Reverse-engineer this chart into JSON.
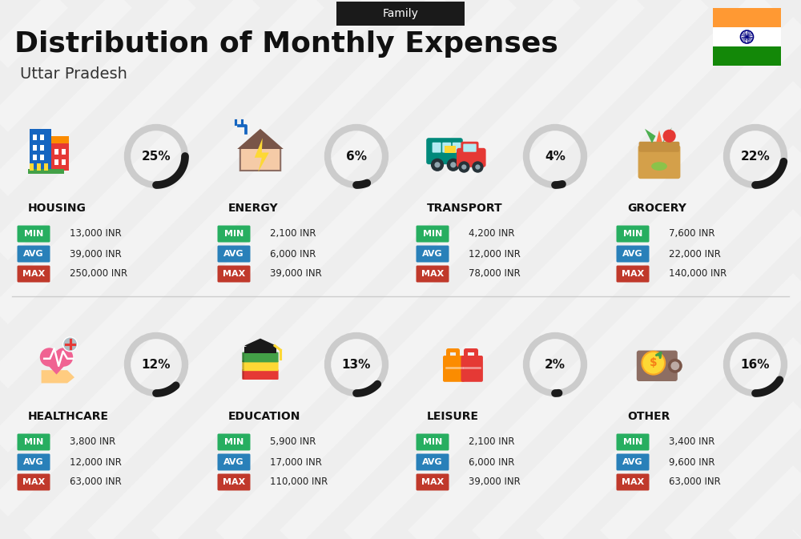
{
  "title": "Distribution of Monthly Expenses",
  "subtitle": "Uttar Pradesh",
  "tag": "Family",
  "bg_color": "#eeeeee",
  "categories": [
    {
      "name": "HOUSING",
      "pct": 25,
      "min_val": "13,000 INR",
      "avg_val": "39,000 INR",
      "max_val": "250,000 INR",
      "icon": "housing",
      "col": 0,
      "row": 0
    },
    {
      "name": "ENERGY",
      "pct": 6,
      "min_val": "2,100 INR",
      "avg_val": "6,000 INR",
      "max_val": "39,000 INR",
      "icon": "energy",
      "col": 1,
      "row": 0
    },
    {
      "name": "TRANSPORT",
      "pct": 4,
      "min_val": "4,200 INR",
      "avg_val": "12,000 INR",
      "max_val": "78,000 INR",
      "icon": "transport",
      "col": 2,
      "row": 0
    },
    {
      "name": "GROCERY",
      "pct": 22,
      "min_val": "7,600 INR",
      "avg_val": "22,000 INR",
      "max_val": "140,000 INR",
      "icon": "grocery",
      "col": 3,
      "row": 0
    },
    {
      "name": "HEALTHCARE",
      "pct": 12,
      "min_val": "3,800 INR",
      "avg_val": "12,000 INR",
      "max_val": "63,000 INR",
      "icon": "healthcare",
      "col": 0,
      "row": 1
    },
    {
      "name": "EDUCATION",
      "pct": 13,
      "min_val": "5,900 INR",
      "avg_val": "17,000 INR",
      "max_val": "110,000 INR",
      "icon": "education",
      "col": 1,
      "row": 1
    },
    {
      "name": "LEISURE",
      "pct": 2,
      "min_val": "2,100 INR",
      "avg_val": "6,000 INR",
      "max_val": "39,000 INR",
      "icon": "leisure",
      "col": 2,
      "row": 1
    },
    {
      "name": "OTHER",
      "pct": 16,
      "min_val": "3,400 INR",
      "avg_val": "9,600 INR",
      "max_val": "63,000 INR",
      "icon": "other",
      "col": 3,
      "row": 1
    }
  ],
  "min_color": "#27ae60",
  "avg_color": "#2980b9",
  "max_color": "#c0392b",
  "ring_filled_color": "#1a1a1a",
  "ring_empty_color": "#cccccc",
  "india_orange": "#FF9933",
  "india_green": "#138808",
  "india_blue": "#000080"
}
